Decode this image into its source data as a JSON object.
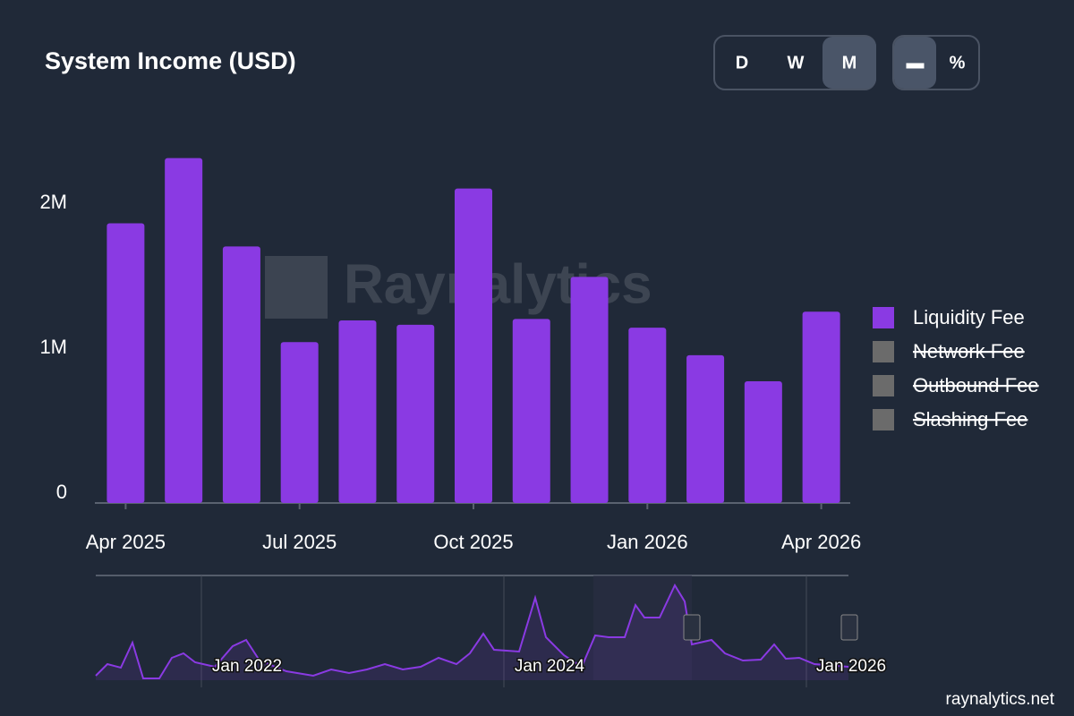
{
  "chart_data": {
    "type": "bar",
    "title": "System Income (USD)",
    "categories": [
      "Apr 2025",
      null,
      null,
      "Jul 2025",
      null,
      null,
      "Oct 2025",
      null,
      null,
      "Jan 2026",
      null,
      null,
      "Apr 2026"
    ],
    "series": [
      {
        "name": "Liquidity Fee",
        "color": "#8a3ae3",
        "values": [
          1930000,
          2380000,
          1770000,
          1110000,
          1260000,
          1230000,
          2170000,
          1270000,
          1560000,
          1210000,
          1020000,
          840000,
          1320000
        ]
      }
    ],
    "hidden_series": [
      {
        "name": "Network Fee",
        "color": "#6b6b6b"
      },
      {
        "name": "Outbound Fee",
        "color": "#6b6b6b"
      },
      {
        "name": "Slashing Fee",
        "color": "#6b6b6b"
      }
    ],
    "ylim": [
      0,
      2600000
    ],
    "yticks": [
      0,
      {
        "value": 1000000,
        "label": "1M"
      },
      {
        "value": 2000000,
        "label": "2M"
      }
    ],
    "grid": false,
    "legend": "right",
    "interval_buttons": [
      {
        "label": "D",
        "active": false
      },
      {
        "label": "W",
        "active": false
      },
      {
        "label": "M",
        "active": true
      }
    ],
    "mode_buttons": [
      {
        "label": "▬",
        "active": true
      },
      {
        "label": "%",
        "active": false
      }
    ],
    "watermark": "Raynalytics",
    "navigator_labels": [
      "Jan 2022",
      "Jan 2024",
      "Jan 2026"
    ],
    "footer": "raynalytics.net"
  }
}
